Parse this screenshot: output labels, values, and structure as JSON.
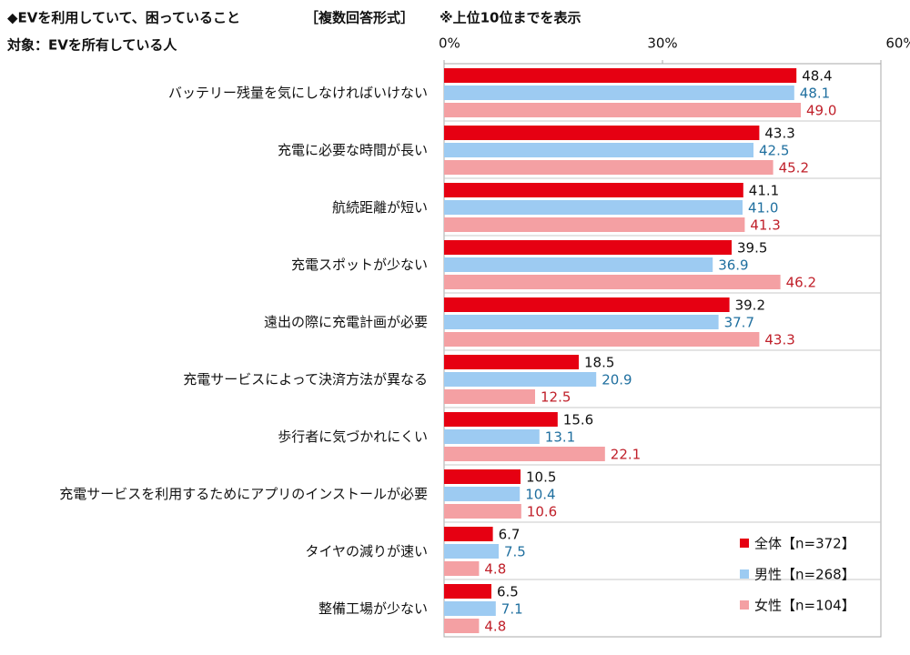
{
  "chart_data": {
    "type": "hbar",
    "title": "◆EVを利用していて、困っていること",
    "title_note": "［複数回答形式］",
    "note": "※上位10位までを表示",
    "subtitle": "対象：EVを所有している人",
    "categories": [
      "バッテリー残量を気にしなければいけない",
      "充電に必要な時間が長い",
      "航続距離が短い",
      "充電スポットが少ない",
      "遠出の際に充電計画が必要",
      "充電サービスによって決済方法が異なる",
      "歩行者に気づかれにくい",
      "充電サービスを利用するためにアプリのインストールが必要",
      "タイヤの減りが速い",
      "整備工場が少ない"
    ],
    "series": [
      {
        "name": "全体【n=372】",
        "color": "#e60012",
        "label_color": "#111111",
        "values": [
          48.4,
          43.3,
          41.1,
          39.5,
          39.2,
          18.5,
          15.6,
          10.5,
          6.7,
          6.5
        ],
        "value_labels": [
          "48.4",
          "43.3",
          "41.1",
          "39.5",
          "39.2",
          "18.5",
          "15.6",
          "10.5",
          "6.7",
          "6.5"
        ]
      },
      {
        "name": "男性【n=268】",
        "color": "#9dcbf2",
        "label_color": "#1f6f9f",
        "values": [
          48.1,
          42.5,
          41.0,
          36.9,
          37.7,
          20.9,
          13.1,
          10.4,
          7.5,
          7.1
        ],
        "value_labels": [
          "48.1",
          "42.5",
          "41.0",
          "36.9",
          "37.7",
          "20.9",
          "13.1",
          "10.4",
          "7.5",
          "7.1"
        ]
      },
      {
        "name": "女性【n=104】",
        "color": "#f4a0a3",
        "label_color": "#c0202a",
        "values": [
          49.0,
          45.2,
          41.3,
          46.2,
          43.3,
          12.5,
          22.1,
          10.6,
          4.8,
          4.8
        ],
        "value_labels": [
          "49.0",
          "45.2",
          "41.3",
          "46.2",
          "43.3",
          "12.5",
          "22.1",
          "10.6",
          "4.8",
          "4.8"
        ]
      }
    ],
    "xlim": [
      0,
      60
    ],
    "xticks": [
      {
        "value": 0,
        "label": "0%"
      },
      {
        "value": 30,
        "label": "30%"
      },
      {
        "value": 60,
        "label": "60%"
      }
    ],
    "grid": false,
    "legend": "lower-right"
  }
}
